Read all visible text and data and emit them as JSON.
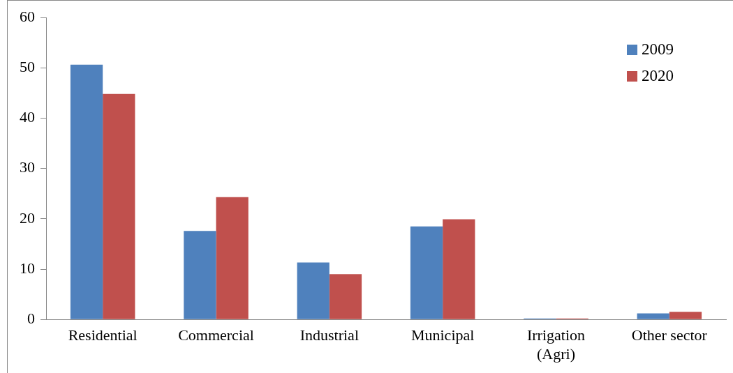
{
  "chart_data": {
    "type": "bar",
    "categories": [
      "Residential",
      "Commercial",
      "Industrial",
      "Municipal",
      "Irrigation\n(Agri)",
      "Other sector"
    ],
    "series": [
      {
        "name": "2009",
        "color": "#4f81bd",
        "values": [
          50.6,
          17.6,
          11.3,
          18.5,
          0.2,
          1.2
        ]
      },
      {
        "name": "2020",
        "color": "#c0504d",
        "values": [
          44.8,
          24.3,
          9.0,
          19.9,
          0.2,
          1.5
        ]
      }
    ],
    "ylim": [
      0,
      60
    ],
    "yticks": [
      0,
      10,
      20,
      30,
      40,
      50,
      60
    ],
    "grid": false,
    "legend": "top right"
  }
}
